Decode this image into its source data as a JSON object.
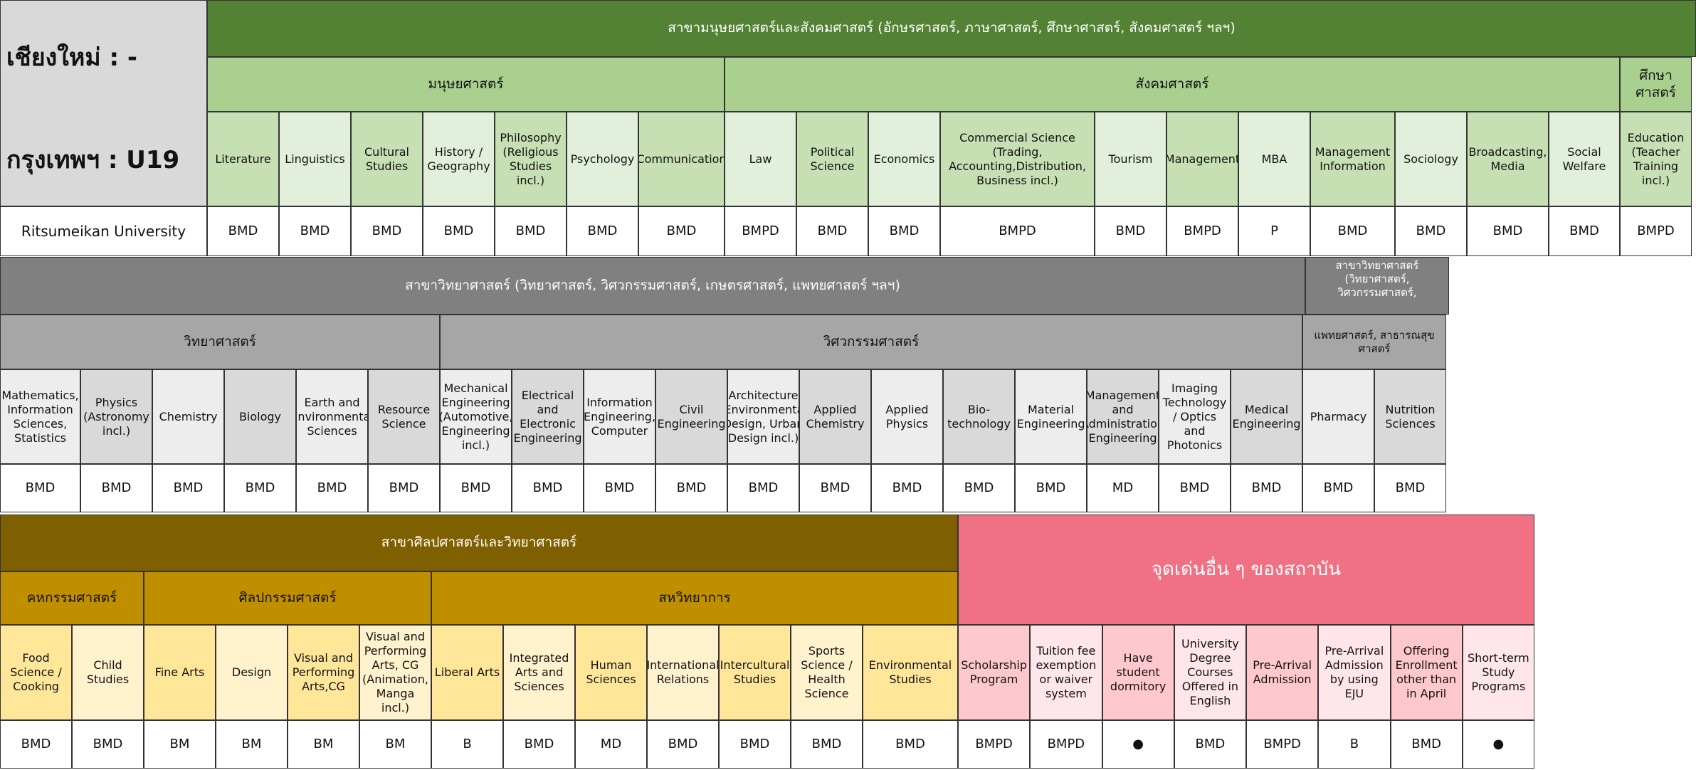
{
  "corner": {
    "chiangmai": "เชียงใหม่ : -",
    "bangkok": "กรุงเทพฯ : U19",
    "university": "Ritsumeikan University"
  },
  "table1": {
    "title": "สาขามนุษยศาสตร์และสังคมศาสตร์ (อักษรศาสตร์, ภาษาศาสตร์, ศึกษาศาสตร์, สังคมศาสตร์ ฯลฯ)",
    "groups": [
      "มนุษยศาสตร์",
      "สังคมศาสตร์",
      "ศึกษาศาสตร์"
    ],
    "subjects": [
      "Literature",
      "Linguistics",
      "Cultural Studies",
      "History / Geography",
      "Philosophy (Religious Studies incl.)",
      "Psychology",
      "Communication",
      "Law",
      "Political Science",
      "Economics",
      "Commercial Science (Trading, Accounting,Distribution, Business incl.)",
      "Tourism",
      "Management",
      "MBA",
      "Management Information",
      "Sociology",
      "Broadcasting, Media",
      "Social Welfare",
      "Education (Teacher Training incl.)"
    ],
    "values": [
      "BMD",
      "BMD",
      "BMD",
      "BMD",
      "BMD",
      "BMD",
      "BMD",
      "BMPD",
      "BMD",
      "BMD",
      "BMPD",
      "BMD",
      "BMPD",
      "P",
      "BMD",
      "BMD",
      "BMD",
      "BMD",
      "BMPD"
    ]
  },
  "table2": {
    "title": "สาขาวิทยาศาสตร์ (วิทยาศาสตร์, วิศวกรรมศาสตร์, เกษตรศาสตร์, แพทยศาสตร์ ฯลฯ)",
    "title_side": "สาขาวิทยาศาสตร์ (วิทยาศาสตร์, วิศวกรรมศาสตร์,",
    "groups": [
      "วิทยาศาสตร์",
      "วิศวกรรมศาสตร์",
      "แพทยศาสตร์, สาธารณสุขศาสตร์"
    ],
    "subjects": [
      "Mathematics, Information Sciences, Statistics",
      "Physics (Astronomy incl.)",
      "Chemistry",
      "Biology",
      "Earth and Environmental Sciences",
      "Resource Science",
      "Mechanical Engineering (Automotive, Engineering incl.)",
      "Electrical and Electronic Engineering",
      "Information Engineering, Computer",
      "Civil Engineering",
      "Architecture (Environmental Design, Urban Design incl.)",
      "Applied Chemistry",
      "Applied Physics",
      "Bio-technology",
      "Material Engineering",
      "Management and Administration Engineering",
      "Imaging Technology / Optics and Photonics",
      "Medical Engineering",
      "Pharmacy",
      "Nutrition Sciences"
    ],
    "values": [
      "BMD",
      "BMD",
      "BMD",
      "BMD",
      "BMD",
      "BMD",
      "BMD",
      "BMD",
      "BMD",
      "BMD",
      "BMD",
      "BMD",
      "BMD",
      "BMD",
      "BMD",
      "MD",
      "BMD",
      "BMD",
      "BMD",
      "BMD"
    ]
  },
  "table3": {
    "title": "สาขาศิลปศาสตร์และวิทยาศาสตร์",
    "features_title": "จุดเด่นอื่น ๆ ของสถาบัน",
    "groups": [
      "คหกรรมศาสตร์",
      "ศิลปกรรมศาสตร์",
      "สหวิทยาการ"
    ],
    "subjects": [
      "Food Science / Cooking",
      "Child Studies",
      "Fine Arts",
      "Design",
      "Visual and Performing Arts,CG",
      "Visual and Performing Arts, CG (Animation, Manga incl.)",
      "Liberal Arts",
      "Integrated Arts and Sciences",
      "Human Sciences",
      "International Relations",
      "Intercultural Studies",
      "Sports Science / Health Science",
      "Environmental Studies"
    ],
    "features": [
      "Scholarship Program",
      "Tuition fee exemption or waiver system",
      "Have student dormitory",
      "University Degree Courses Offered in English",
      "Pre-Arrival Admission",
      "Pre-Arrival Admission by using EJU",
      "Offering Enrollment other than in April",
      "Short-term Study Programs"
    ],
    "values": [
      "BMD",
      "BMD",
      "BM",
      "BM",
      "BM",
      "BM",
      "B",
      "BMD",
      "MD",
      "BMD",
      "BMD",
      "BMD",
      "BMD",
      "BMPD",
      "BMPD",
      "●",
      "BMD",
      "BMPD",
      "B",
      "BMD",
      "●"
    ]
  },
  "colors": {
    "t1_title": "#548235",
    "t1_group": "#a9d08e",
    "t1_a": "#c6e0b4",
    "t1_b": "#e2efda",
    "t2_title": "#808080",
    "t2_group": "#a6a6a6",
    "t2_a": "#d9d9d9",
    "t2_b": "#ededed",
    "t3_title": "#7f6000",
    "t3_group": "#bf8f00",
    "t3_a": "#ffe699",
    "t3_b": "#fff2cc",
    "feat_title": "#f07084",
    "feat_a": "#ffc7ce",
    "feat_b": "#ffe6ea"
  }
}
